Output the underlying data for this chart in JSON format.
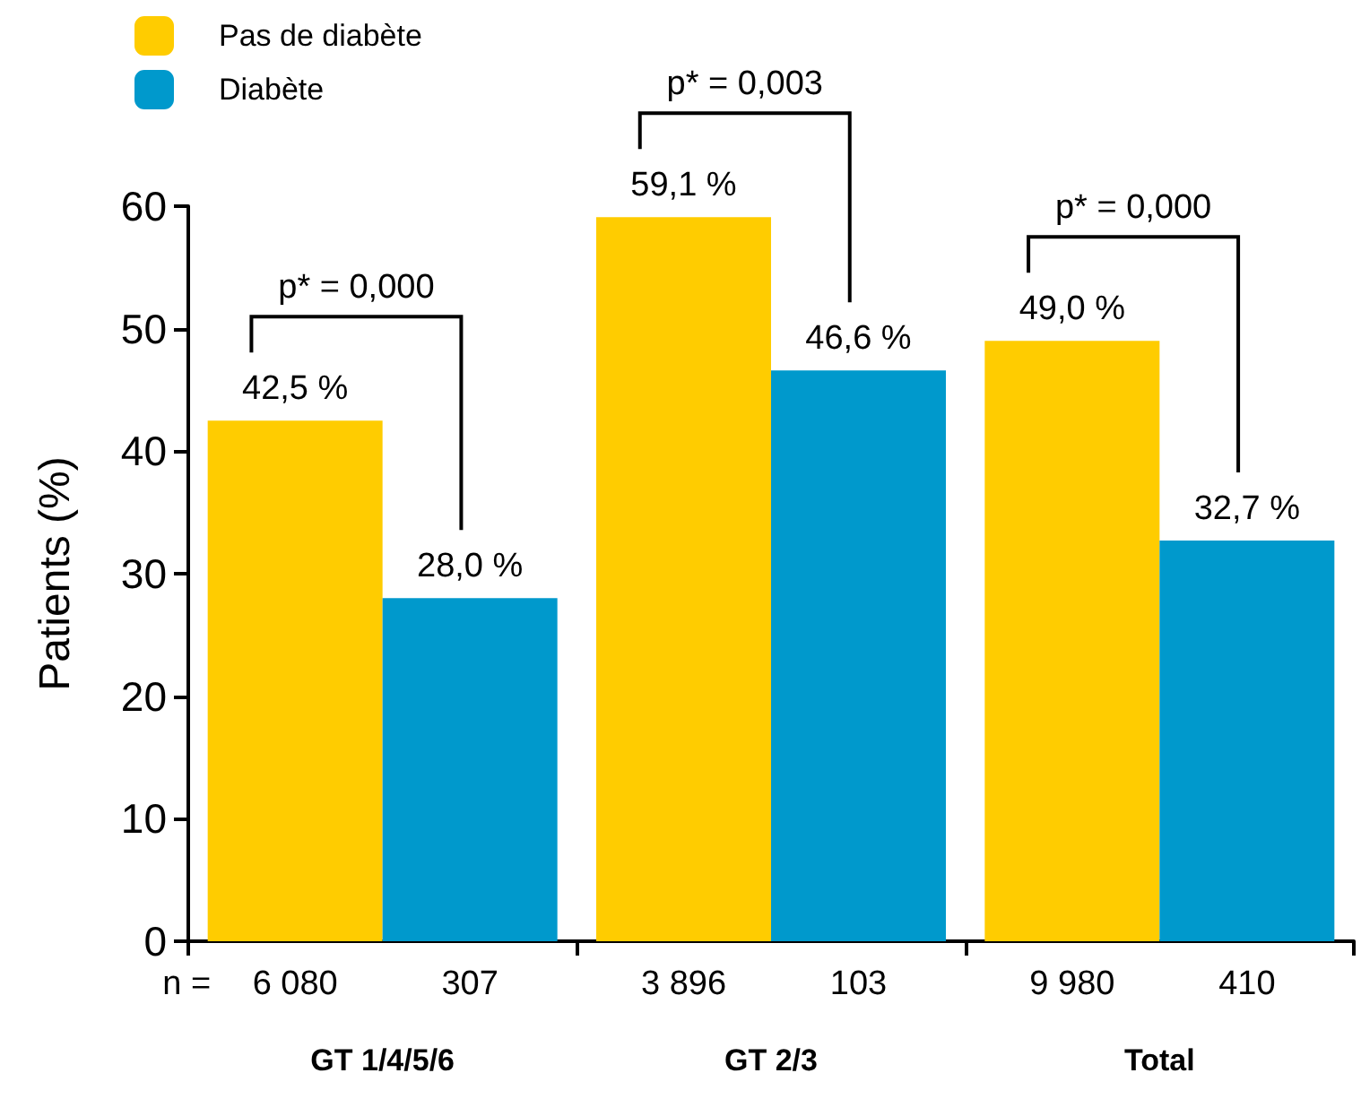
{
  "chart_data": {
    "type": "bar",
    "ylabel": "Patients (%)",
    "categories": [
      "GT 1/4/5/6",
      "GT 2/3",
      "Total"
    ],
    "series": [
      {
        "name": "Pas de diabète",
        "color": "#ffcc00",
        "values": [
          42.5,
          59.1,
          49.0
        ],
        "value_labels": [
          "42,5 %",
          "59,1 %",
          "49,0 %"
        ]
      },
      {
        "name": "Diabète",
        "color": "#0099cc",
        "values": [
          28.0,
          46.6,
          32.7
        ],
        "value_labels": [
          "28,0 %",
          "46,6 %",
          "32,7 %"
        ]
      }
    ],
    "ylim": [
      0,
      60
    ],
    "yticks": [
      0,
      10,
      20,
      30,
      40,
      50,
      60
    ],
    "grid": false,
    "legend": "top left",
    "annotations": [
      "n =",
      "6 080",
      "307",
      "3 896",
      "103",
      "9 980",
      "410",
      "p* = 0,000",
      "p* = 0,003",
      "p* = 0,000"
    ]
  }
}
